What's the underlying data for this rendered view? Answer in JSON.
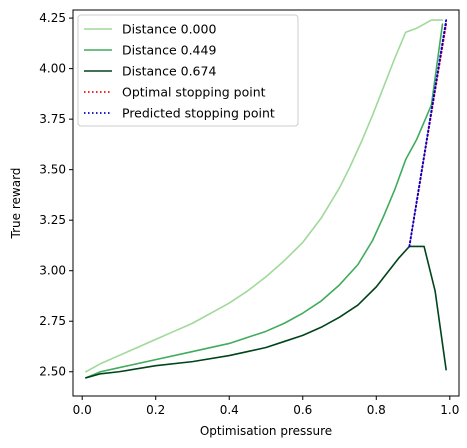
{
  "chart_data": {
    "type": "line",
    "title": "",
    "xlabel": "Optimisation pressure",
    "ylabel": "True reward",
    "xlim": [
      -0.025,
      1.025
    ],
    "ylim": [
      2.38,
      4.29
    ],
    "xticks": [
      0.0,
      0.2,
      0.4,
      0.6,
      0.8,
      1.0
    ],
    "xtick_labels": [
      "0.0",
      "0.2",
      "0.4",
      "0.6",
      "0.8",
      "1.0"
    ],
    "yticks": [
      2.5,
      2.75,
      3.0,
      3.25,
      3.5,
      3.75,
      4.0,
      4.25
    ],
    "ytick_labels": [
      "2.50",
      "2.75",
      "3.00",
      "3.25",
      "3.50",
      "3.75",
      "4.00",
      "4.25"
    ],
    "grid": false,
    "legend_position": "top-left",
    "series": [
      {
        "name": "Distance 0.000",
        "color": "#a1d99b",
        "style": "solid",
        "x": [
          0.01,
          0.05,
          0.1,
          0.15,
          0.2,
          0.25,
          0.3,
          0.35,
          0.4,
          0.45,
          0.5,
          0.55,
          0.6,
          0.65,
          0.7,
          0.73,
          0.76,
          0.79,
          0.82,
          0.85,
          0.88,
          0.91,
          0.95,
          0.98
        ],
        "y": [
          2.5,
          2.54,
          2.58,
          2.62,
          2.66,
          2.7,
          2.74,
          2.79,
          2.84,
          2.9,
          2.97,
          3.05,
          3.14,
          3.26,
          3.41,
          3.52,
          3.64,
          3.77,
          3.91,
          4.05,
          4.18,
          4.2,
          4.24,
          4.24
        ]
      },
      {
        "name": "Distance 0.449",
        "color": "#41ab5d",
        "style": "solid",
        "x": [
          0.01,
          0.05,
          0.1,
          0.2,
          0.3,
          0.4,
          0.45,
          0.5,
          0.55,
          0.6,
          0.65,
          0.7,
          0.75,
          0.79,
          0.82,
          0.85,
          0.88,
          0.91,
          0.95,
          0.98
        ],
        "y": [
          2.47,
          2.5,
          2.52,
          2.56,
          2.6,
          2.64,
          2.67,
          2.7,
          2.74,
          2.79,
          2.85,
          2.93,
          3.03,
          3.15,
          3.27,
          3.4,
          3.55,
          3.65,
          3.82,
          4.22
        ]
      },
      {
        "name": "Distance 0.674",
        "color": "#00441b",
        "style": "solid",
        "x": [
          0.01,
          0.05,
          0.1,
          0.2,
          0.3,
          0.4,
          0.45,
          0.5,
          0.55,
          0.6,
          0.65,
          0.7,
          0.75,
          0.8,
          0.83,
          0.86,
          0.89,
          0.93,
          0.96,
          0.99
        ],
        "y": [
          2.47,
          2.49,
          2.5,
          2.53,
          2.55,
          2.58,
          2.6,
          2.62,
          2.65,
          2.68,
          2.72,
          2.77,
          2.83,
          2.92,
          2.99,
          3.06,
          3.12,
          3.12,
          2.9,
          2.51
        ]
      },
      {
        "name": "Optimal stopping point",
        "color": "#ff0000",
        "style": "dotted",
        "x": [
          0.89,
          0.99
        ],
        "y": [
          3.12,
          4.22
        ]
      },
      {
        "name": "Predicted stopping point",
        "color": "#0000cc",
        "style": "dotted",
        "x": [
          0.89,
          0.99
        ],
        "y": [
          3.12,
          4.24
        ]
      }
    ]
  }
}
